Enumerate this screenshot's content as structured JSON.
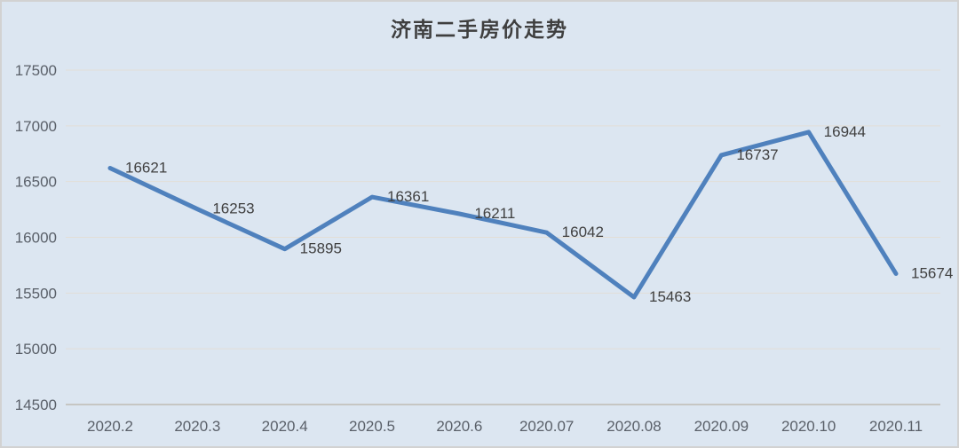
{
  "frame": {
    "background_color": "#dce6f1",
    "border_color": "#d2d2d2"
  },
  "chart_data": {
    "type": "line",
    "title": "济南二手房价走势",
    "categories": [
      "2020.2",
      "2020.3",
      "2020.4",
      "2020.5",
      "2020.6",
      "2020.07",
      "2020.08",
      "2020.09",
      "2020.10",
      "2020.11"
    ],
    "values": [
      16621,
      16253,
      15895,
      16361,
      16211,
      16042,
      15463,
      16737,
      16944,
      15674
    ],
    "data_labels": [
      "16621",
      "16253",
      "15895",
      "16361",
      "16211",
      "16042",
      "15463",
      "16737",
      "16944",
      "15674"
    ],
    "y_tick_labels": [
      "14500",
      "15000",
      "15500",
      "16000",
      "16500",
      "17000",
      "17500"
    ],
    "ylim": [
      14500,
      17500
    ],
    "y_tick_step": 500,
    "grid": true,
    "legend_position": "none",
    "xlabel": "",
    "ylabel": "",
    "line_color": "#4f81bd",
    "gridline_color": "#e2ded6",
    "axis_line_color": "#bfbcb4",
    "axis_text_color": "#5a6069",
    "data_label_color": "#404040",
    "title_color": "#3f3f3f"
  }
}
